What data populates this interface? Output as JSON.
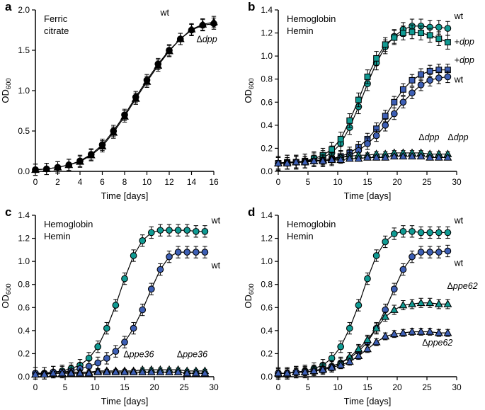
{
  "colors": {
    "teal": "#109b93",
    "blue": "#3d5fb5",
    "black": "#000000"
  },
  "chart_data": [
    {
      "type": "line",
      "panel_letter": "a",
      "legend": [
        {
          "text": "Ferric citrate",
          "color": "black",
          "multiline": true
        }
      ],
      "xlabel": "Time [days]",
      "ylabel": "OD",
      "ylabel_sub": "600",
      "xlim": [
        0,
        16
      ],
      "ylim": [
        0,
        2.0
      ],
      "xticks": [
        0,
        2,
        4,
        6,
        8,
        10,
        12,
        14,
        16
      ],
      "yticks": [
        0,
        0.5,
        1.0,
        1.5,
        2.0
      ],
      "ydecimals": 1,
      "x": [
        0,
        1,
        2,
        3,
        4,
        5,
        6,
        7,
        8,
        9,
        10,
        11,
        12,
        13,
        14,
        15,
        16
      ],
      "series": [
        {
          "id": "wt-ferric-citrate",
          "marker": "circle",
          "color": "black",
          "err": 0.07,
          "values": [
            0.02,
            0.03,
            0.05,
            0.08,
            0.13,
            0.21,
            0.33,
            0.5,
            0.7,
            0.92,
            1.13,
            1.33,
            1.5,
            1.64,
            1.75,
            1.81,
            1.83
          ],
          "label": {
            "prefix": "wt",
            "gene": "",
            "x": 11.6,
            "y": 1.93,
            "anchor": "middle",
            "color": "black"
          }
        },
        {
          "id": "ddpp-ferric-citrate",
          "marker": "triangle",
          "color": "black",
          "err": 0.07,
          "values": [
            0.02,
            0.03,
            0.05,
            0.08,
            0.12,
            0.2,
            0.31,
            0.48,
            0.68,
            0.9,
            1.11,
            1.31,
            1.49,
            1.64,
            1.76,
            1.82,
            1.85
          ],
          "label": {
            "prefix": "Δ",
            "gene": "dpp",
            "x": 16.3,
            "y": 1.6,
            "anchor": "end",
            "color": "black"
          }
        }
      ]
    },
    {
      "type": "line",
      "panel_letter": "b",
      "legend": [
        {
          "text": "Hemoglobin",
          "color": "teal"
        },
        {
          "text": "Hemin",
          "color": "blue"
        }
      ],
      "xlabel": "Time [days]",
      "ylabel": "OD",
      "ylabel_sub": "600",
      "xlim": [
        0,
        30
      ],
      "ylim": [
        0,
        1.4
      ],
      "xticks": [
        0,
        5,
        10,
        15,
        20,
        25,
        30
      ],
      "yticks": [
        0,
        0.2,
        0.4,
        0.6,
        0.8,
        1.0,
        1.2,
        1.4
      ],
      "ydecimals": 1,
      "x": [
        0,
        1.5,
        3,
        4.5,
        6,
        7.5,
        9,
        10.5,
        12,
        13.5,
        15,
        16.5,
        18,
        19.5,
        21,
        22.5,
        24,
        25.5,
        27,
        28.5
      ],
      "series": [
        {
          "id": "wt-hemoglobin",
          "marker": "circle",
          "color": "teal",
          "err": 0.06,
          "values": [
            0.07,
            0.08,
            0.08,
            0.09,
            0.1,
            0.12,
            0.16,
            0.24,
            0.38,
            0.56,
            0.76,
            0.94,
            1.08,
            1.17,
            1.23,
            1.26,
            1.26,
            1.25,
            1.25,
            1.24
          ],
          "label": {
            "prefix": "wt",
            "gene": "",
            "x": 29.6,
            "y": 1.32,
            "anchor": "start",
            "color": "teal"
          }
        },
        {
          "id": "plus-dpp-hemoglobin",
          "marker": "square",
          "color": "teal",
          "err": 0.06,
          "values": [
            0.07,
            0.08,
            0.08,
            0.09,
            0.11,
            0.14,
            0.19,
            0.28,
            0.44,
            0.62,
            0.82,
            0.98,
            1.1,
            1.16,
            1.2,
            1.21,
            1.2,
            1.18,
            1.15,
            1.12
          ],
          "label": {
            "prefix": "+",
            "gene": "dpp",
            "x": 29.6,
            "y": 1.1,
            "anchor": "start",
            "color": "teal"
          }
        },
        {
          "id": "plus-dpp-hemin",
          "marker": "square",
          "color": "blue",
          "err": 0.05,
          "values": [
            0.07,
            0.07,
            0.08,
            0.08,
            0.09,
            0.1,
            0.11,
            0.13,
            0.16,
            0.21,
            0.28,
            0.37,
            0.48,
            0.6,
            0.71,
            0.79,
            0.84,
            0.87,
            0.88,
            0.88
          ],
          "label": {
            "prefix": "+",
            "gene": "dpp",
            "x": 29.6,
            "y": 0.94,
            "anchor": "start",
            "color": "blue"
          }
        },
        {
          "id": "wt-hemin",
          "marker": "circle",
          "color": "blue",
          "err": 0.05,
          "values": [
            0.07,
            0.07,
            0.08,
            0.08,
            0.09,
            0.09,
            0.1,
            0.12,
            0.14,
            0.18,
            0.24,
            0.31,
            0.4,
            0.5,
            0.6,
            0.68,
            0.75,
            0.79,
            0.81,
            0.82
          ],
          "label": {
            "prefix": "wt",
            "gene": "",
            "x": 29.6,
            "y": 0.77,
            "anchor": "start",
            "color": "blue"
          }
        },
        {
          "id": "ddpp-hemoglobin",
          "marker": "triangle",
          "color": "teal",
          "err": 0.02,
          "values": [
            0.07,
            0.08,
            0.08,
            0.09,
            0.09,
            0.1,
            0.11,
            0.12,
            0.13,
            0.14,
            0.14,
            0.15,
            0.15,
            0.16,
            0.16,
            0.16,
            0.16,
            0.15,
            0.15,
            0.15
          ],
          "label": {
            "prefix": "Δ",
            "gene": "dpp",
            "x": 23.6,
            "y": 0.27,
            "anchor": "start",
            "color": "teal"
          }
        },
        {
          "id": "ddpp-hemin",
          "marker": "triangle",
          "color": "blue",
          "err": 0.02,
          "values": [
            0.07,
            0.07,
            0.08,
            0.08,
            0.09,
            0.09,
            0.1,
            0.1,
            0.11,
            0.11,
            0.12,
            0.12,
            0.12,
            0.13,
            0.13,
            0.13,
            0.13,
            0.12,
            0.12,
            0.12
          ],
          "label": {
            "prefix": "Δ",
            "gene": "dpp",
            "x": 28.5,
            "y": 0.27,
            "anchor": "start",
            "color": "blue"
          }
        }
      ]
    },
    {
      "type": "line",
      "panel_letter": "c",
      "legend": [
        {
          "text": "Hemoglobin",
          "color": "teal"
        },
        {
          "text": "Hemin",
          "color": "blue"
        }
      ],
      "xlabel": "Time [days]",
      "ylabel": "OD",
      "ylabel_sub": "600",
      "xlim": [
        0,
        30
      ],
      "ylim": [
        0,
        1.4
      ],
      "xticks": [
        0,
        5,
        10,
        15,
        20,
        25,
        30
      ],
      "yticks": [
        0,
        0.2,
        0.4,
        0.6,
        0.8,
        1.0,
        1.2,
        1.4
      ],
      "ydecimals": 1,
      "x": [
        0,
        1.5,
        3,
        4.5,
        6,
        7.5,
        9,
        10.5,
        12,
        13.5,
        15,
        16.5,
        18,
        19.5,
        21,
        22.5,
        24,
        25.5,
        27,
        28.5
      ],
      "series": [
        {
          "id": "wt-hemoglobin",
          "marker": "circle",
          "color": "teal",
          "err": 0.05,
          "values": [
            0.03,
            0.03,
            0.04,
            0.05,
            0.07,
            0.1,
            0.16,
            0.26,
            0.42,
            0.62,
            0.85,
            1.05,
            1.18,
            1.25,
            1.27,
            1.27,
            1.27,
            1.27,
            1.26,
            1.26
          ],
          "label": {
            "prefix": "wt",
            "gene": "",
            "x": 29.6,
            "y": 1.33,
            "anchor": "start",
            "color": "teal"
          }
        },
        {
          "id": "wt-hemin",
          "marker": "circle",
          "color": "blue",
          "err": 0.05,
          "values": [
            0.03,
            0.03,
            0.04,
            0.04,
            0.05,
            0.07,
            0.09,
            0.12,
            0.16,
            0.22,
            0.3,
            0.42,
            0.58,
            0.76,
            0.93,
            1.04,
            1.08,
            1.08,
            1.08,
            1.08
          ],
          "label": {
            "prefix": "wt",
            "gene": "",
            "x": 29.6,
            "y": 0.94,
            "anchor": "start",
            "color": "blue"
          }
        },
        {
          "id": "dppe36-hemoglobin",
          "marker": "triangle",
          "color": "teal",
          "err": 0.015,
          "values": [
            0.02,
            0.03,
            0.03,
            0.03,
            0.04,
            0.04,
            0.04,
            0.05,
            0.05,
            0.05,
            0.05,
            0.05,
            0.06,
            0.06,
            0.06,
            0.06,
            0.06,
            0.05,
            0.05,
            0.05
          ],
          "label": {
            "prefix": "Δ",
            "gene": "ppe36",
            "x": 14.8,
            "y": 0.17,
            "anchor": "start",
            "color": "teal"
          }
        },
        {
          "id": "dppe36-hemin",
          "marker": "triangle",
          "color": "blue",
          "err": 0.015,
          "values": [
            0.02,
            0.02,
            0.03,
            0.03,
            0.03,
            0.03,
            0.03,
            0.04,
            0.04,
            0.04,
            0.04,
            0.04,
            0.04,
            0.04,
            0.04,
            0.04,
            0.04,
            0.03,
            0.03,
            0.03
          ],
          "label": {
            "prefix": "Δ",
            "gene": "ppe36",
            "x": 23.8,
            "y": 0.17,
            "anchor": "start",
            "color": "blue"
          }
        }
      ]
    },
    {
      "type": "line",
      "panel_letter": "d",
      "legend": [
        {
          "text": "Hemoglobin",
          "color": "teal"
        },
        {
          "text": "Hemin",
          "color": "blue"
        }
      ],
      "xlabel": "Time [days]",
      "ylabel": "OD",
      "ylabel_sub": "600",
      "xlim": [
        0,
        30
      ],
      "ylim": [
        0,
        1.4
      ],
      "xticks": [
        0,
        5,
        10,
        15,
        20,
        25,
        30
      ],
      "yticks": [
        0,
        0.2,
        0.4,
        0.6,
        0.8,
        1.0,
        1.2,
        1.4
      ],
      "ydecimals": 1,
      "x": [
        0,
        1.5,
        3,
        4.5,
        6,
        7.5,
        9,
        10.5,
        12,
        13.5,
        15,
        16.5,
        18,
        19.5,
        21,
        22.5,
        24,
        25.5,
        27,
        28.5
      ],
      "series": [
        {
          "id": "wt-hemoglobin",
          "marker": "circle",
          "color": "teal",
          "err": 0.05,
          "values": [
            0.03,
            0.03,
            0.04,
            0.05,
            0.07,
            0.1,
            0.16,
            0.26,
            0.42,
            0.62,
            0.85,
            1.05,
            1.17,
            1.24,
            1.26,
            1.26,
            1.25,
            1.25,
            1.25,
            1.25
          ],
          "label": {
            "prefix": "wt",
            "gene": "",
            "x": 29.6,
            "y": 1.33,
            "anchor": "start",
            "color": "teal"
          }
        },
        {
          "id": "wt-hemin",
          "marker": "circle",
          "color": "blue",
          "err": 0.05,
          "values": [
            0.03,
            0.03,
            0.04,
            0.04,
            0.05,
            0.07,
            0.09,
            0.12,
            0.16,
            0.22,
            0.3,
            0.42,
            0.58,
            0.76,
            0.93,
            1.04,
            1.08,
            1.08,
            1.08,
            1.09
          ],
          "label": {
            "prefix": "wt",
            "gene": "",
            "x": 29.6,
            "y": 0.96,
            "anchor": "start",
            "color": "blue"
          }
        },
        {
          "id": "dppe62-hemoglobin",
          "marker": "triangle",
          "color": "teal",
          "err": 0.04,
          "values": [
            0.03,
            0.03,
            0.04,
            0.04,
            0.05,
            0.07,
            0.09,
            0.12,
            0.17,
            0.24,
            0.32,
            0.42,
            0.52,
            0.58,
            0.62,
            0.63,
            0.64,
            0.64,
            0.63,
            0.63
          ],
          "label": {
            "prefix": "Δ",
            "gene": "ppe62",
            "x": 28.4,
            "y": 0.76,
            "anchor": "start",
            "color": "teal"
          }
        },
        {
          "id": "dppe62-hemin",
          "marker": "triangle",
          "color": "blue",
          "err": 0.03,
          "values": [
            0.03,
            0.03,
            0.04,
            0.04,
            0.05,
            0.06,
            0.08,
            0.1,
            0.13,
            0.18,
            0.24,
            0.3,
            0.35,
            0.37,
            0.38,
            0.39,
            0.39,
            0.39,
            0.38,
            0.38
          ],
          "label": {
            "prefix": "Δ",
            "gene": "ppe62",
            "x": 24.2,
            "y": 0.27,
            "anchor": "start",
            "color": "blue"
          }
        }
      ]
    }
  ]
}
